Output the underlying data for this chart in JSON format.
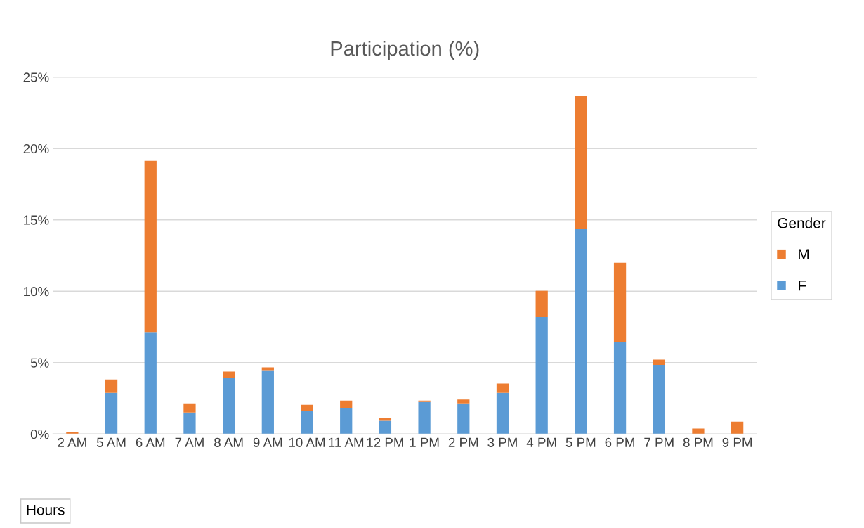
{
  "chart_data": {
    "type": "bar",
    "title": "Participation (%)",
    "xlabel": "Hours",
    "legend_title": "Gender",
    "stacked": true,
    "categories": [
      "2 AM",
      "5 AM",
      "6 AM",
      "7 AM",
      "8 AM",
      "9 AM",
      "10 AM",
      "11 AM",
      "12 PM",
      "1 PM",
      "2 PM",
      "3 PM",
      "4 PM",
      "5 PM",
      "6 PM",
      "7 PM",
      "8 PM",
      "9 PM"
    ],
    "series": [
      {
        "name": "F",
        "color": "#5b9bd5",
        "values": [
          0,
          2.89,
          7.14,
          1.5,
          3.91,
          4.47,
          1.59,
          1.79,
          0.93,
          2.25,
          2.15,
          2.89,
          8.19,
          14.34,
          6.43,
          4.84,
          0,
          0
        ]
      },
      {
        "name": "M",
        "color": "#ed7d31",
        "values": [
          0.12,
          0.93,
          12.0,
          0.65,
          0.46,
          0.2,
          0.46,
          0.55,
          0.19,
          0.09,
          0.27,
          0.65,
          1.84,
          9.36,
          5.57,
          0.37,
          0.38,
          0.87
        ]
      }
    ],
    "ylim": [
      0,
      25
    ],
    "yticks": [
      {
        "value": 0,
        "label": "0%"
      },
      {
        "value": 5,
        "label": "5%"
      },
      {
        "value": 10,
        "label": "10%"
      },
      {
        "value": 15,
        "label": "15%"
      },
      {
        "value": 20,
        "label": "20%"
      },
      {
        "value": 25,
        "label": "25%"
      }
    ],
    "grid": "y",
    "legend": "right"
  }
}
